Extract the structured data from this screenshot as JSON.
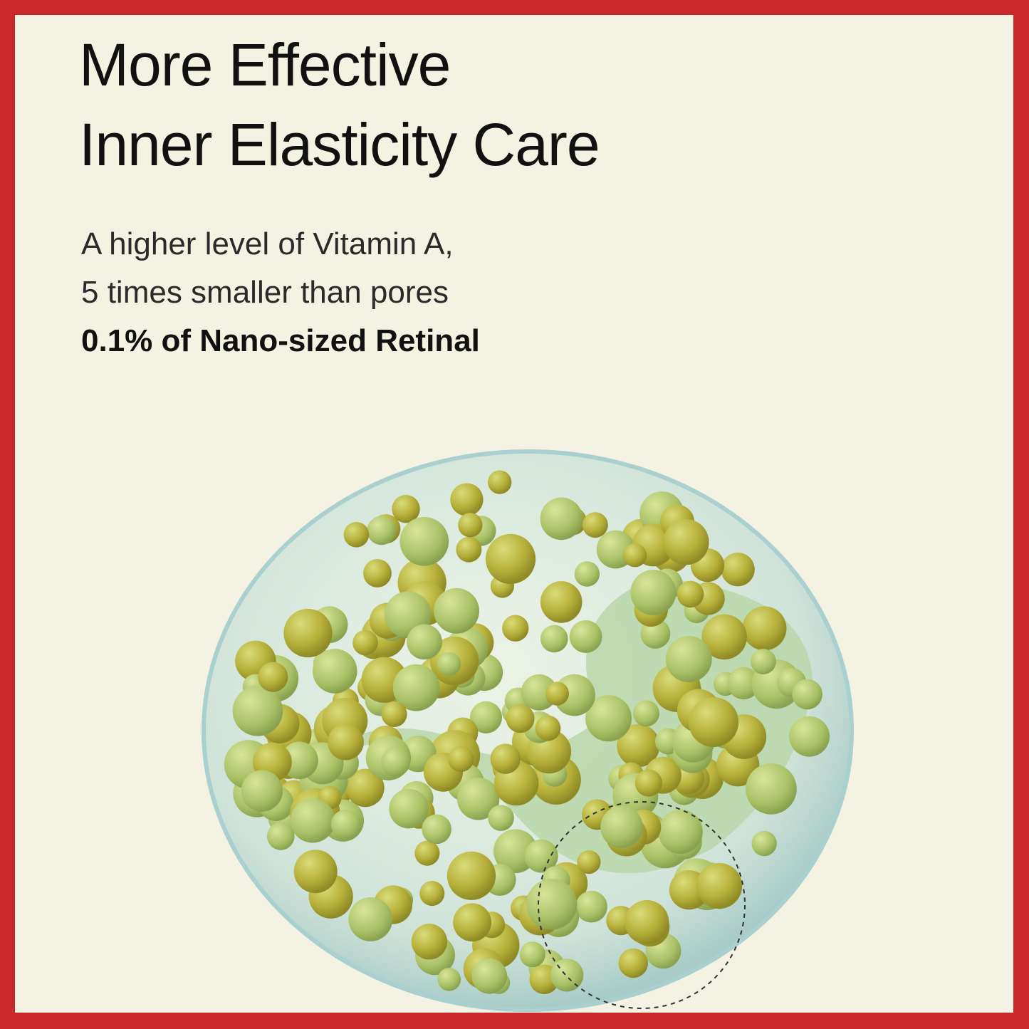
{
  "headline": {
    "line1": "More Effective",
    "line2": "Inner Elasticity Care"
  },
  "description": {
    "line1": "A higher level of Vitamin A,",
    "line2": "5 times smaller than pores",
    "line3": "0.1% of Nano-sized Retinal"
  },
  "colors": {
    "border": "#c9292b",
    "background": "#f3f2e3",
    "particle": "#b5b23a",
    "capsule": "#cfe3d4"
  },
  "illustration": {
    "name": "nano-retinal-capsule-sphere"
  }
}
